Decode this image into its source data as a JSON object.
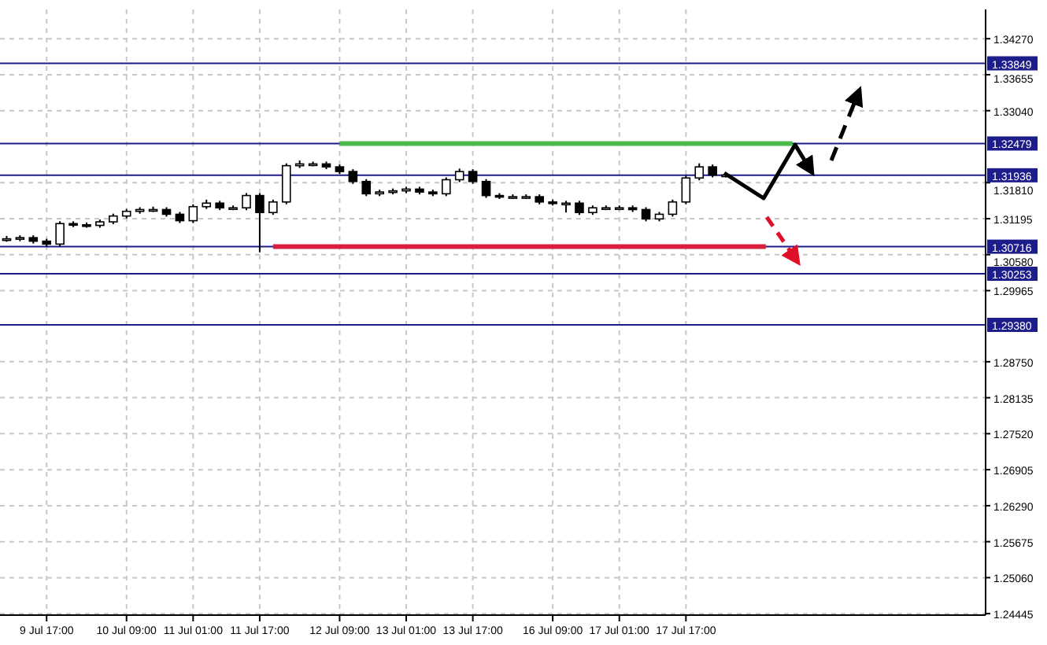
{
  "chart_data": {
    "type": "candlestick",
    "categories": [
      null,
      null,
      null,
      "9 Jul 17:00",
      null,
      null,
      null,
      null,
      null,
      "10 Jul 09:00",
      null,
      null,
      null,
      null,
      "11 Jul 01:00",
      null,
      null,
      null,
      null,
      "11 Jul 17:00",
      null,
      null,
      null,
      null,
      null,
      "12 Jul 09:00",
      null,
      null,
      null,
      null,
      "13 Jul 01:00",
      null,
      null,
      null,
      null,
      "13 Jul 17:00",
      null,
      null,
      null,
      null,
      null,
      "16 Jul 09:00",
      null,
      null,
      null,
      null,
      "17 Jul 01:00",
      null,
      null,
      null,
      null,
      "17 Jul 17:00",
      null,
      null,
      null,
      null,
      null,
      null,
      null,
      null,
      null,
      null,
      null,
      null,
      null,
      null,
      null,
      null,
      null,
      null,
      null,
      null,
      null,
      null
    ],
    "ohlc": [
      [
        1.3084,
        1.309,
        1.308,
        1.3085
      ],
      [
        1.3085,
        1.3091,
        1.3081,
        1.3087
      ],
      [
        1.3087,
        1.3091,
        1.3077,
        1.3081
      ],
      [
        1.3081,
        1.3085,
        1.3072,
        1.3076
      ],
      [
        1.3076,
        1.3115,
        1.3072,
        1.3111
      ],
      [
        1.3111,
        1.3115,
        1.3105,
        1.3109
      ],
      [
        1.3109,
        1.3113,
        1.3104,
        1.3108
      ],
      [
        1.3108,
        1.3118,
        1.3104,
        1.3114
      ],
      [
        1.3114,
        1.3128,
        1.311,
        1.3124
      ],
      [
        1.3124,
        1.3136,
        1.312,
        1.3132
      ],
      [
        1.3132,
        1.3139,
        1.3128,
        1.3135
      ],
      [
        1.3135,
        1.314,
        1.3131,
        1.3135
      ],
      [
        1.3135,
        1.3139,
        1.3123,
        1.3127
      ],
      [
        1.3127,
        1.3131,
        1.3112,
        1.3116
      ],
      [
        1.3116,
        1.3144,
        1.3112,
        1.314
      ],
      [
        1.314,
        1.3152,
        1.3136,
        1.3146
      ],
      [
        1.3146,
        1.315,
        1.3134,
        1.3138
      ],
      [
        1.3138,
        1.3142,
        1.3134,
        1.3138
      ],
      [
        1.3138,
        1.3163,
        1.3134,
        1.3159
      ],
      [
        1.3159,
        1.3163,
        1.3062,
        1.313
      ],
      [
        1.313,
        1.3152,
        1.3126,
        1.3148
      ],
      [
        1.3148,
        1.3214,
        1.3144,
        1.321
      ],
      [
        1.321,
        1.3219,
        1.3206,
        1.3213
      ],
      [
        1.3213,
        1.3217,
        1.3209,
        1.3213
      ],
      [
        1.3213,
        1.3217,
        1.3204,
        1.3208
      ],
      [
        1.3208,
        1.3212,
        1.3196,
        1.32
      ],
      [
        1.32,
        1.3204,
        1.3179,
        1.3183
      ],
      [
        1.3183,
        1.3187,
        1.3158,
        1.3162
      ],
      [
        1.3162,
        1.3169,
        1.3158,
        1.3165
      ],
      [
        1.3165,
        1.3171,
        1.3161,
        1.3167
      ],
      [
        1.3167,
        1.3174,
        1.3163,
        1.317
      ],
      [
        1.317,
        1.3174,
        1.3161,
        1.3165
      ],
      [
        1.3165,
        1.3169,
        1.3158,
        1.3162
      ],
      [
        1.3162,
        1.319,
        1.3158,
        1.3186
      ],
      [
        1.3186,
        1.3205,
        1.3182,
        1.32
      ],
      [
        1.32,
        1.3204,
        1.3179,
        1.3183
      ],
      [
        1.3183,
        1.3187,
        1.3155,
        1.3159
      ],
      [
        1.3159,
        1.3163,
        1.3153,
        1.3157
      ],
      [
        1.3157,
        1.3161,
        1.3153,
        1.3157
      ],
      [
        1.3157,
        1.3161,
        1.3153,
        1.3157
      ],
      [
        1.3157,
        1.3161,
        1.3144,
        1.3148
      ],
      [
        1.3148,
        1.3152,
        1.3142,
        1.3146
      ],
      [
        1.3146,
        1.315,
        1.313,
        1.3146
      ],
      [
        1.3146,
        1.315,
        1.3126,
        1.313
      ],
      [
        1.313,
        1.3142,
        1.3126,
        1.3138
      ],
      [
        1.3138,
        1.3142,
        1.3134,
        1.3138
      ],
      [
        1.3138,
        1.3142,
        1.3134,
        1.3138
      ],
      [
        1.3138,
        1.3142,
        1.3131,
        1.3135
      ],
      [
        1.3135,
        1.3139,
        1.3115,
        1.3119
      ],
      [
        1.3119,
        1.3131,
        1.3115,
        1.3127
      ],
      [
        1.3127,
        1.3152,
        1.3123,
        1.3148
      ],
      [
        1.3148,
        1.3193,
        1.3144,
        1.3189
      ],
      [
        1.3189,
        1.3214,
        1.3185,
        1.3208
      ],
      [
        1.3208,
        1.3212,
        1.319,
        1.3194
      ],
      [
        1.3194,
        1.3198,
        1.319,
        1.3194
      ],
      null,
      null,
      null,
      null,
      null,
      null,
      null,
      null,
      null,
      null,
      null,
      null,
      null,
      null,
      null,
      null,
      null,
      null,
      null
    ],
    "series": [
      {
        "type": "line",
        "color": "#4cbb4c",
        "values": [
          null,
          null,
          null,
          null,
          null,
          null,
          null,
          null,
          null,
          null,
          null,
          null,
          null,
          null,
          null,
          null,
          null,
          null,
          null,
          null,
          null,
          null,
          null,
          null,
          null,
          1.32479,
          1.32479,
          1.32479,
          1.32479,
          1.32479,
          1.32479,
          1.32479,
          1.32479,
          1.32479,
          1.32479,
          1.32479,
          1.32479,
          1.32479,
          1.32479,
          1.32479,
          1.32479,
          1.32479,
          1.32479,
          1.32479,
          1.32479,
          1.32479,
          1.32479,
          1.32479,
          1.32479,
          1.32479,
          1.32479,
          1.32479,
          1.32479,
          1.32479,
          1.32479,
          1.32479,
          1.32479,
          1.32479,
          1.32479,
          1.32479,
          null,
          null,
          null,
          null,
          null,
          null,
          null,
          null,
          null,
          null,
          null,
          null,
          null,
          null
        ]
      },
      {
        "type": "line",
        "color": "#d81e3c",
        "values": [
          null,
          null,
          null,
          null,
          null,
          null,
          null,
          null,
          null,
          null,
          null,
          null,
          null,
          null,
          null,
          null,
          null,
          null,
          null,
          null,
          1.30716,
          1.30716,
          1.30716,
          1.30716,
          1.30716,
          1.30716,
          1.30716,
          1.30716,
          1.30716,
          1.30716,
          1.30716,
          1.30716,
          1.30716,
          1.30716,
          1.30716,
          1.30716,
          1.30716,
          1.30716,
          1.30716,
          1.30716,
          1.30716,
          1.30716,
          1.30716,
          1.30716,
          1.30716,
          1.30716,
          1.30716,
          1.30716,
          1.30716,
          1.30716,
          1.30716,
          1.30716,
          1.30716,
          1.30716,
          1.30716,
          1.30716,
          1.30716,
          1.30716,
          null,
          null,
          null,
          null,
          null,
          null,
          null,
          null,
          null,
          null,
          null,
          null,
          null,
          null,
          null,
          null
        ]
      }
    ],
    "ylim": [
      1.2442,
      1.3477
    ],
    "yticks": [
      {
        "value": 1.3427,
        "label": "1.34270"
      },
      {
        "value": 1.33655,
        "label": "1.33655"
      },
      {
        "value": 1.3304,
        "label": "1.33040"
      },
      {
        "value": 1.3181,
        "label": "1.31810"
      },
      {
        "value": 1.31195,
        "label": "1.31195"
      },
      {
        "value": 1.3058,
        "label": "1.30580"
      },
      {
        "value": 1.29965,
        "label": "1.29965"
      },
      {
        "value": 1.2875,
        "label": "1.28750"
      },
      {
        "value": 1.28135,
        "label": "1.28135"
      },
      {
        "value": 1.2752,
        "label": "1.27520"
      },
      {
        "value": 1.26905,
        "label": "1.26905"
      },
      {
        "value": 1.2629,
        "label": "1.26290"
      },
      {
        "value": 1.25675,
        "label": "1.25675"
      },
      {
        "value": 1.2506,
        "label": "1.25060"
      },
      {
        "value": 1.24445,
        "label": "1.24445"
      }
    ],
    "ref_lines": [
      {
        "axis": "y",
        "value": 1.33849,
        "label": "1.33849",
        "color": "#1c1c8a"
      },
      {
        "axis": "y",
        "value": 1.32479,
        "label": "1.32479",
        "color": "#1c1c8a"
      },
      {
        "axis": "y",
        "value": 1.31936,
        "label": "1.31936",
        "color": "#1c1c8a"
      },
      {
        "axis": "y",
        "value": 1.30716,
        "label": "1.30716",
        "color": "#1c1c8a"
      },
      {
        "axis": "y",
        "value": 1.30253,
        "label": "1.30253",
        "color": "#1c1c8a"
      },
      {
        "axis": "y",
        "value": 1.2938,
        "label": "1.29380",
        "color": "#1c1c8a"
      }
    ],
    "grid": true
  }
}
